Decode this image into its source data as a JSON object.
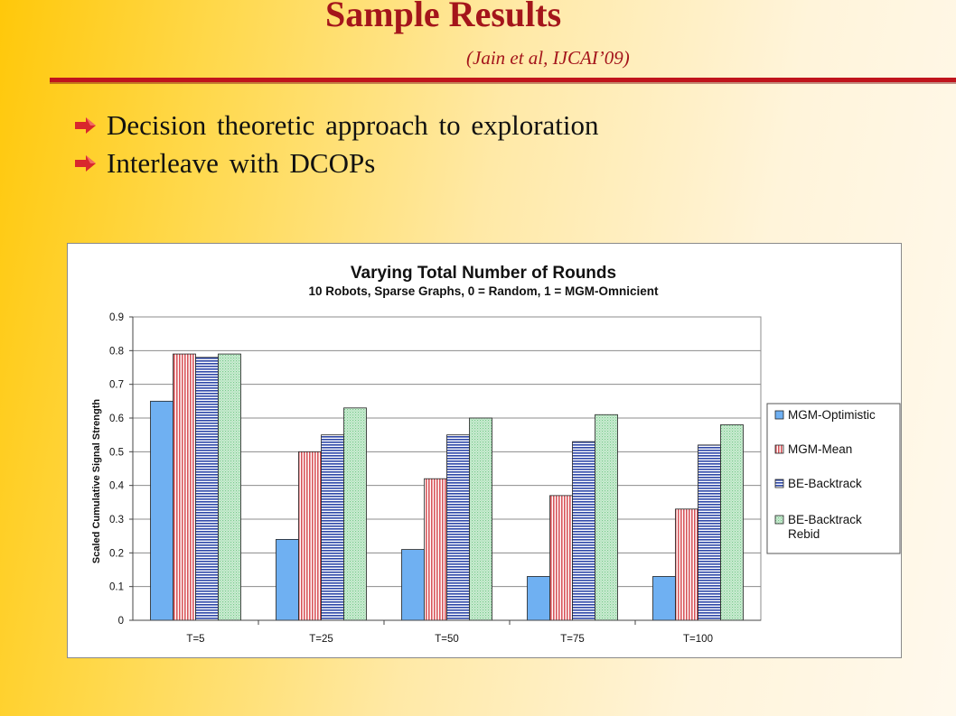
{
  "slide": {
    "title": "Sample Results",
    "subtitle": "(Jain et al, IJCAI’09)",
    "bullets": [
      {
        "text": "Decision theoretic approach to exploration",
        "icon": "red-arrow-icon"
      },
      {
        "text": "Interleave with DCOPs",
        "icon": "red-arrow-icon"
      }
    ],
    "colors": {
      "title": "#a4151b",
      "rule": "#c0141c",
      "background_start": "#ffc80a",
      "background_end": "#fff9ed"
    }
  },
  "chart_data": {
    "type": "bar",
    "title": "Varying Total Number of Rounds",
    "subtitle": "10 Robots, Sparse Graphs, 0 = Random, 1 = MGM-Omnicient",
    "ylabel": "Scaled Cumulative Signal Strength",
    "xlabel": "",
    "categories": [
      "T=5",
      "T=25",
      "T=50",
      "T=75",
      "T=100"
    ],
    "ylim": [
      0,
      0.9
    ],
    "yticks": [
      "0",
      "0.1",
      "0.2",
      "0.3",
      "0.4",
      "0.5",
      "0.6",
      "0.7",
      "0.8",
      "0.9"
    ],
    "grid": true,
    "legend_position": "right",
    "series": [
      {
        "name": "MGM-Optimistic",
        "values": [
          0.65,
          0.24,
          0.21,
          0.13,
          0.13
        ],
        "color": "#6fb0f2",
        "pattern": "solid"
      },
      {
        "name": "MGM-Mean",
        "values": [
          0.79,
          0.5,
          0.42,
          0.37,
          0.33
        ],
        "color": "#d8555a",
        "pattern": "vertical-stripes"
      },
      {
        "name": "BE-Backtrack",
        "values": [
          0.78,
          0.55,
          0.55,
          0.53,
          0.52
        ],
        "color": "#2d47a8",
        "pattern": "horizontal-stripes"
      },
      {
        "name": "BE-Backtrack Rebid",
        "values": [
          0.79,
          0.63,
          0.6,
          0.61,
          0.58
        ],
        "color": "#77c98b",
        "pattern": "diagonal-dots"
      }
    ]
  }
}
